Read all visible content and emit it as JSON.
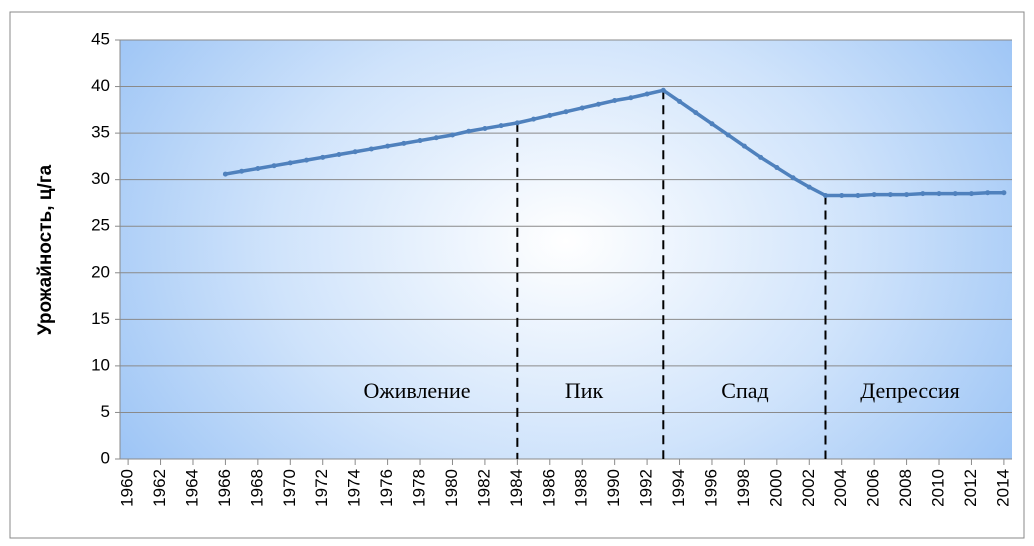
{
  "chart_data": {
    "type": "line",
    "ylabel": "Урожайность, ц/га",
    "x": [
      1966,
      1967,
      1968,
      1969,
      1970,
      1971,
      1972,
      1973,
      1974,
      1975,
      1976,
      1977,
      1978,
      1979,
      1980,
      1981,
      1982,
      1983,
      1984,
      1985,
      1986,
      1987,
      1988,
      1989,
      1990,
      1991,
      1992,
      1993,
      1994,
      1995,
      1996,
      1997,
      1998,
      1999,
      2000,
      2001,
      2002,
      2003,
      2004,
      2005,
      2006,
      2007,
      2008,
      2009,
      2010,
      2011,
      2012,
      2013,
      2014
    ],
    "series": [
      {
        "name": "Урожайность",
        "color": "#4f81bd",
        "values": [
          30.6,
          30.9,
          31.2,
          31.5,
          31.8,
          32.1,
          32.4,
          32.7,
          33.0,
          33.3,
          33.6,
          33.9,
          34.2,
          34.5,
          34.8,
          35.2,
          35.5,
          35.8,
          36.1,
          36.5,
          36.9,
          37.3,
          37.7,
          38.1,
          38.5,
          38.8,
          39.2,
          39.6,
          38.4,
          37.2,
          36.0,
          34.8,
          33.6,
          32.4,
          31.3,
          30.2,
          29.2,
          28.3,
          28.3,
          28.3,
          28.4,
          28.4,
          28.4,
          28.5,
          28.5,
          28.5,
          28.5,
          28.6,
          28.6
        ]
      }
    ],
    "xlim": [
      1959.5,
      2014.5
    ],
    "xticks": [
      1960,
      1962,
      1964,
      1966,
      1968,
      1970,
      1972,
      1974,
      1976,
      1978,
      1980,
      1982,
      1984,
      1986,
      1988,
      1990,
      1992,
      1994,
      1996,
      1998,
      2000,
      2002,
      2004,
      2006,
      2008,
      2010,
      2012,
      2014
    ],
    "ylim": [
      0,
      45
    ],
    "yticks": [
      0,
      5,
      10,
      15,
      20,
      25,
      30,
      35,
      40,
      45
    ],
    "grid": true,
    "dividers": [
      1984,
      1993,
      2003
    ],
    "annotations": [
      "Оживление",
      "Пик",
      "Спад",
      "Депрессия"
    ]
  }
}
